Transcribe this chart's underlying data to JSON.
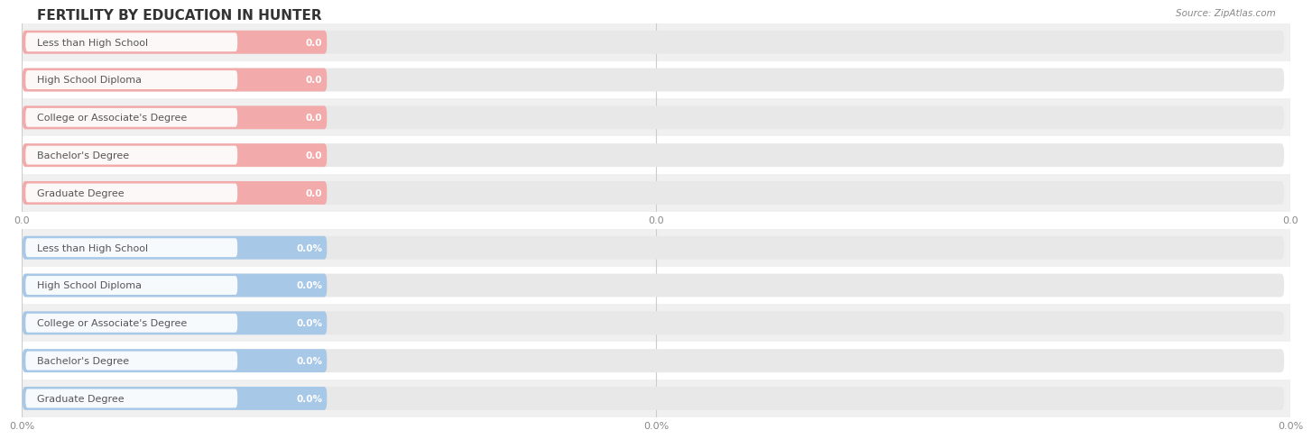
{
  "title": "FERTILITY BY EDUCATION IN HUNTER",
  "source": "Source: ZipAtlas.com",
  "categories": [
    "Less than High School",
    "High School Diploma",
    "College or Associate's Degree",
    "Bachelor's Degree",
    "Graduate Degree"
  ],
  "top_values": [
    0.0,
    0.0,
    0.0,
    0.0,
    0.0
  ],
  "bottom_values": [
    0.0,
    0.0,
    0.0,
    0.0,
    0.0
  ],
  "top_bar_color": "#F2AAAA",
  "bottom_bar_color": "#A8C8E8",
  "top_value_labels": [
    "0.0",
    "0.0",
    "0.0",
    "0.0",
    "0.0"
  ],
  "bottom_value_labels": [
    "0.0%",
    "0.0%",
    "0.0%",
    "0.0%",
    "0.0%"
  ],
  "top_xtick_labels": [
    "0.0",
    "0.0",
    "0.0"
  ],
  "bottom_xtick_labels": [
    "0.0%",
    "0.0%",
    "0.0%"
  ],
  "background_color": "#FFFFFF",
  "row_bg_color_alt": "#F0F0F0",
  "title_fontsize": 11,
  "label_fontsize": 8,
  "value_fontsize": 7.5,
  "tick_fontsize": 8,
  "source_fontsize": 7.5,
  "bar_height": 0.62,
  "track_color": "#E8E8E8",
  "label_text_color": "#555555",
  "value_text_color": "#FFFFFF",
  "grid_color": "#CCCCCC",
  "tick_color": "#888888"
}
